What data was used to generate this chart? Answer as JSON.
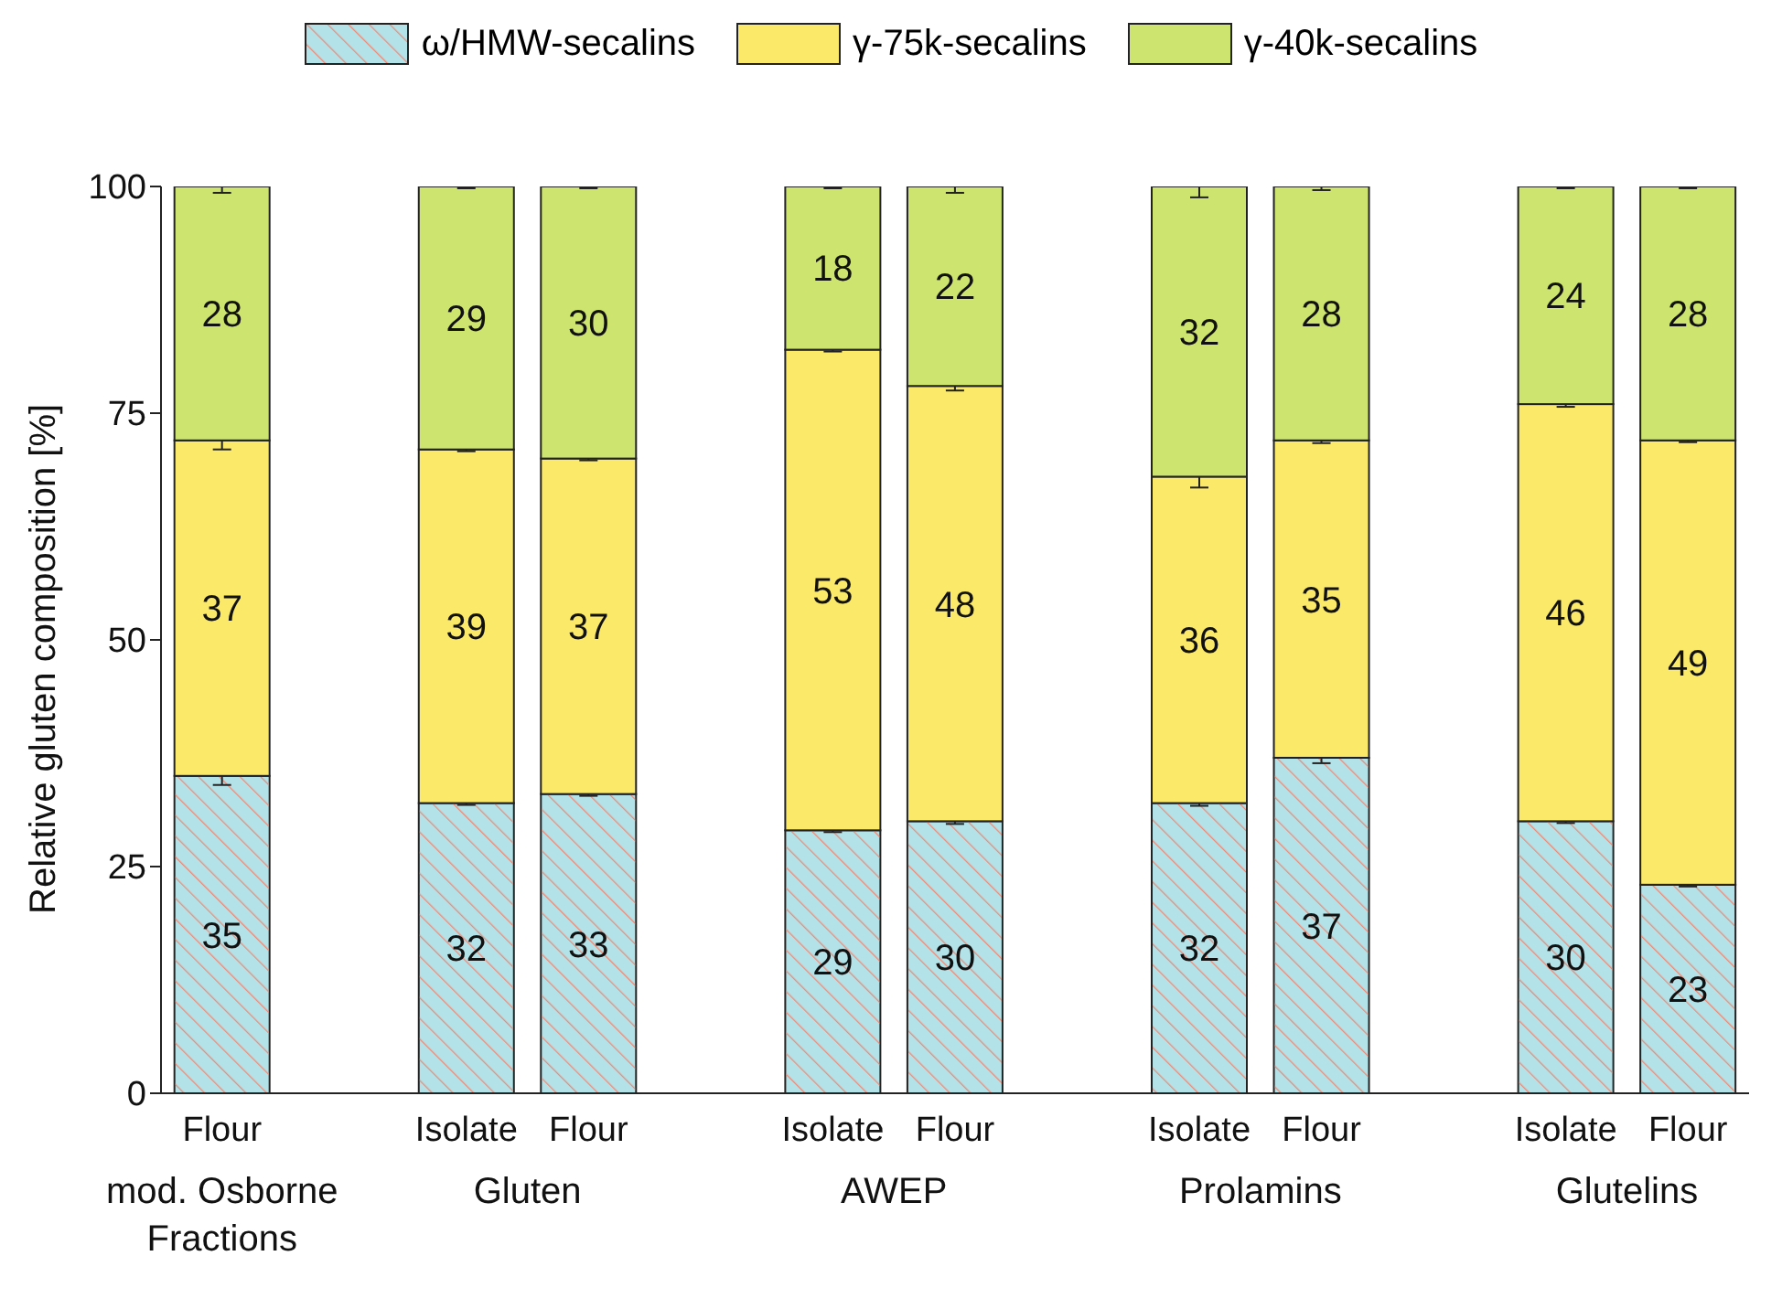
{
  "chart_data": {
    "type": "bar",
    "stacked": true,
    "ylabel": "Relative gluten composition [%]",
    "categories": [
      "Flour",
      null,
      "Isolate",
      "Flour",
      null,
      "Isolate",
      "Flour",
      null,
      "Isolate",
      "Flour",
      null,
      "Isolate",
      "Flour"
    ],
    "series": [
      {
        "name": "ω/HMW-secalins",
        "color": "#b3e3e8",
        "values": [
          35,
          null,
          32,
          33,
          null,
          29,
          30,
          null,
          32,
          37,
          null,
          30,
          23
        ],
        "errors": [
          1,
          null,
          0.2,
          0.2,
          null,
          0.2,
          0.3,
          null,
          0.3,
          0.6,
          null,
          0.2,
          0.2
        ]
      },
      {
        "name": "γ-75k-secalins",
        "color": "#fbe96a",
        "values": [
          37,
          null,
          39,
          37,
          null,
          53,
          48,
          null,
          36,
          35,
          null,
          46,
          49
        ],
        "errors": [
          1,
          null,
          0.2,
          0.2,
          null,
          0.2,
          0.5,
          null,
          1.2,
          0.3,
          null,
          0.3,
          0.2
        ]
      },
      {
        "name": "γ-40k-secalins",
        "color": "#cde56e",
        "values": [
          28,
          null,
          29,
          30,
          null,
          18,
          22,
          null,
          32,
          28,
          null,
          24,
          28
        ],
        "errors": [
          0.7,
          null,
          0.2,
          0.2,
          null,
          0.2,
          0.7,
          null,
          1.2,
          0.4,
          null,
          0.2,
          0.2
        ]
      }
    ],
    "ylim": [
      0,
      100
    ],
    "yticks": [
      0,
      25,
      50,
      75,
      100
    ],
    "grid": false,
    "legend": "top",
    "data_labels": true,
    "annotations": [
      "mod. Osborne Fractions",
      "Gluten",
      "AWEP",
      "Prolamins",
      "Glutelins"
    ]
  }
}
